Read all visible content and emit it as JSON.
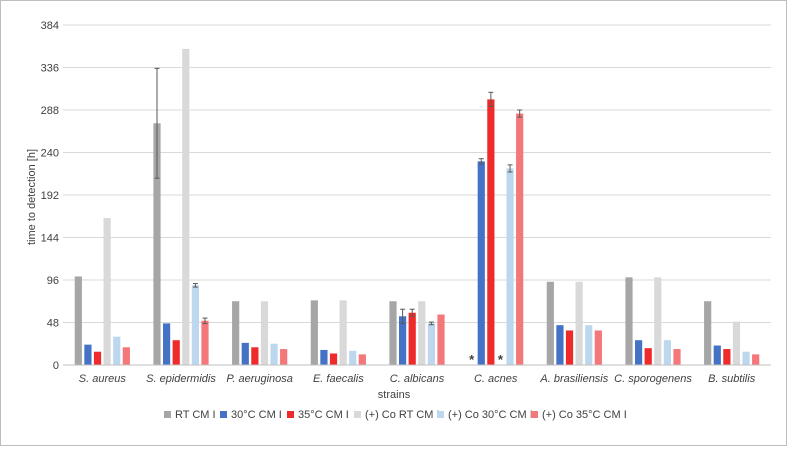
{
  "chart_data": {
    "type": "bar",
    "title": "",
    "xlabel": "strains",
    "ylabel": "time to detection [h]",
    "ylim": [
      0,
      384
    ],
    "yticks": [
      0,
      48,
      96,
      144,
      192,
      240,
      288,
      336,
      384
    ],
    "grid": true,
    "legend_position": "bottom",
    "categories": [
      "S. aureus",
      "S. epidermidis",
      "P. aeruginosa",
      "E. faecalis",
      "C. albicans",
      "C. acnes",
      "A. brasiliensis",
      "C. sporogenens",
      "B. subtilis"
    ],
    "series": [
      {
        "name": "RT CM I",
        "color": "#a6a6a6",
        "values": [
          100,
          273,
          72,
          73,
          72,
          0,
          94,
          99,
          72
        ],
        "errors": [
          0,
          62,
          0,
          0,
          0,
          0,
          0,
          0,
          0
        ]
      },
      {
        "name": "30°C CM I",
        "color": "#4472c4",
        "values": [
          23,
          47,
          25,
          17,
          55,
          230,
          45,
          28,
          22
        ],
        "errors": [
          0,
          0,
          0,
          0,
          8,
          3,
          0,
          0,
          0
        ]
      },
      {
        "name": "35°C CM I",
        "color": "#ee2a2a",
        "values": [
          15,
          28,
          20,
          13,
          59,
          300,
          39,
          19,
          18
        ],
        "errors": [
          0,
          0,
          0,
          0,
          4,
          8,
          0,
          0,
          0
        ]
      },
      {
        "name": "(+) Co RT CM I",
        "color": "#d9d9d9",
        "values": [
          166,
          357,
          72,
          73,
          72,
          0,
          94,
          99,
          49
        ],
        "errors": [
          0,
          0,
          0,
          0,
          0,
          0,
          0,
          0,
          0
        ]
      },
      {
        "name": "(+) Co 30°C CM I",
        "color": "#bdd7ee",
        "values": [
          32,
          90,
          24,
          16,
          47,
          222,
          45,
          28,
          15
        ],
        "errors": [
          0,
          2,
          0,
          0,
          1.5,
          4,
          0,
          0,
          0
        ]
      },
      {
        "name": "(+) Co 35°C CM I",
        "color": "#f4777a",
        "values": [
          20,
          50,
          18,
          12,
          57,
          284,
          39,
          18,
          12
        ],
        "errors": [
          0,
          3,
          0,
          0,
          0,
          4,
          0,
          0,
          0
        ]
      }
    ],
    "annotations": [
      {
        "text": "*",
        "category": "C. acnes",
        "series": "RT CM I"
      },
      {
        "text": "*",
        "category": "C. acnes",
        "series": "(+) Co RT CM I"
      }
    ]
  }
}
